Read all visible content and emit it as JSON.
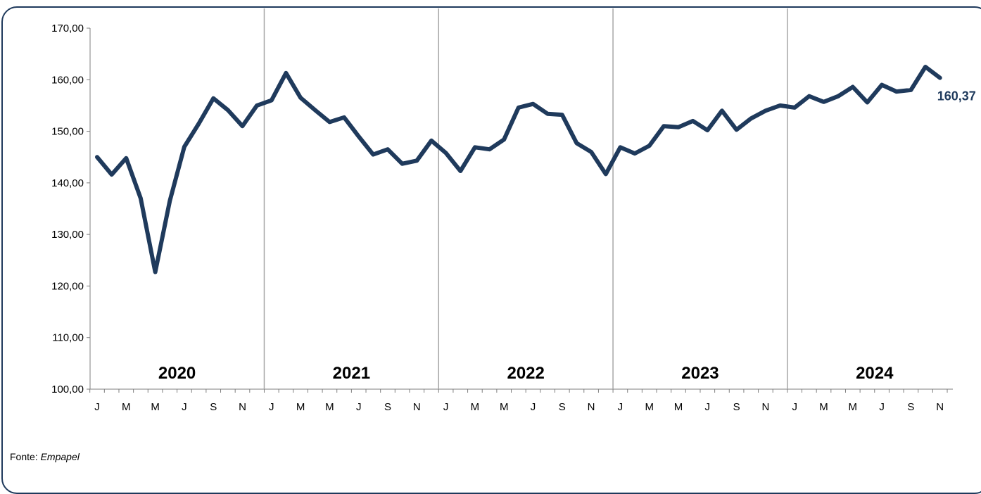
{
  "chart_data": {
    "type": "line",
    "ylim": [
      100,
      170
    ],
    "yticks": [
      "100,00",
      "110,00",
      "120,00",
      "130,00",
      "140,00",
      "150,00",
      "160,00",
      "170,00"
    ],
    "ytick_values": [
      100,
      110,
      120,
      130,
      140,
      150,
      160,
      170
    ],
    "x_tick_labels": [
      "J",
      "M",
      "M",
      "J",
      "S",
      "N"
    ],
    "years": [
      "2020",
      "2021",
      "2022",
      "2023",
      "2024"
    ],
    "line_color": "#1f3a5c",
    "grid": false,
    "series": [
      {
        "values": [
          145.0,
          141.6,
          144.8,
          137.0,
          122.7,
          136.5,
          147.0,
          151.5,
          156.4,
          154.1,
          151.0,
          155.0,
          156.0,
          161.3,
          156.5,
          154.1,
          151.8,
          152.7,
          149.0,
          145.5,
          146.5,
          143.7,
          144.3,
          148.2,
          145.8,
          142.3,
          146.9,
          146.5,
          148.4,
          154.6,
          155.3,
          153.4,
          153.2,
          147.7,
          146.0,
          141.7,
          146.9,
          145.7,
          147.2,
          151.0,
          150.8,
          152.0,
          150.2,
          154.0,
          150.3,
          152.5,
          154.0,
          155.0,
          154.6,
          156.8,
          155.7,
          156.8,
          158.6,
          155.6,
          159.0,
          157.7,
          158.0,
          162.5,
          160.37
        ]
      }
    ],
    "end_label": "160,37"
  },
  "footer": {
    "source_prefix": "Fonte: ",
    "source_name": "Empapel"
  }
}
